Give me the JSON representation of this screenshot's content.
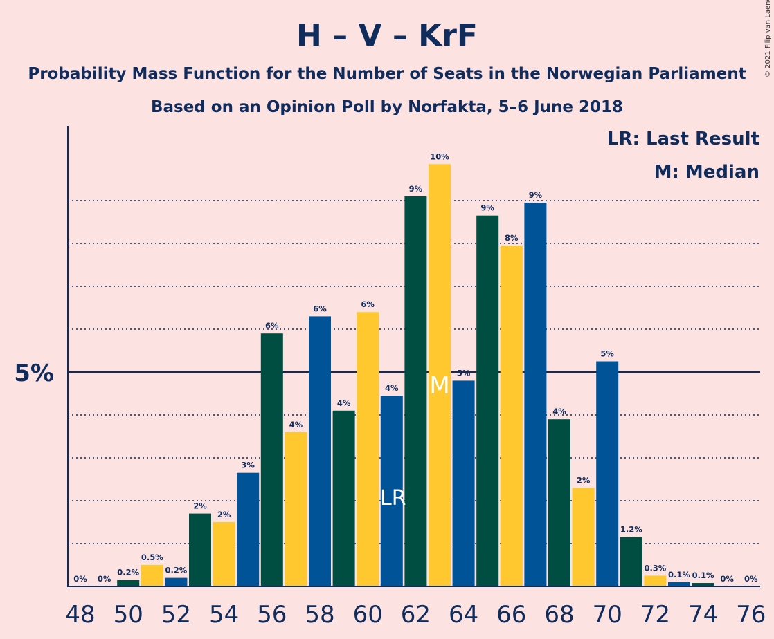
{
  "copyright": "© 2021 Filip van Laenen",
  "chart_data": {
    "type": "bar",
    "title": "H – V – KrF",
    "subtitle1": "Probability Mass Function for the Number of Seats in the Norwegian Parliament",
    "subtitle2": "Based on an Opinion Poll by Norfakta, 5–6 June 2018",
    "legend": [
      "LR: Last Result",
      "M: Median"
    ],
    "legend_position": "top-right",
    "y_tick_label": "5%",
    "ylim": [
      0,
      10.8
    ],
    "x": [
      48,
      49,
      50,
      51,
      52,
      53,
      54,
      55,
      56,
      57,
      58,
      59,
      60,
      61,
      62,
      63,
      64,
      65,
      66,
      67,
      68,
      69,
      70,
      71,
      72,
      73,
      74,
      75,
      76
    ],
    "x_tick_labels": [
      "48",
      "50",
      "52",
      "54",
      "56",
      "58",
      "60",
      "62",
      "64",
      "66",
      "68",
      "70",
      "72",
      "74",
      "76"
    ],
    "values": [
      0,
      0,
      0.15,
      0.5,
      0.2,
      1.7,
      1.5,
      2.65,
      5.9,
      3.6,
      6.3,
      4.1,
      6.4,
      4.45,
      9.1,
      9.85,
      4.8,
      8.65,
      7.95,
      8.95,
      3.9,
      2.3,
      5.25,
      1.15,
      0.25,
      0.1,
      0.08,
      0,
      0
    ],
    "labels": [
      "0%",
      "0%",
      "0.2%",
      "0.5%",
      "0.2%",
      "2%",
      "2%",
      "3%",
      "6%",
      "4%",
      "6%",
      "4%",
      "6%",
      "4%",
      "9%",
      "10%",
      "5%",
      "9%",
      "8%",
      "9%",
      "4%",
      "2%",
      "5%",
      "1.2%",
      "0.3%",
      "0.1%",
      "0.1%",
      "0%",
      "0%"
    ],
    "bar_colors": [
      "#FFC82F",
      "#005396",
      "#004D42"
    ],
    "last_result": {
      "seat": 61,
      "label": "LR"
    },
    "median": {
      "seat": 63,
      "label": "M"
    }
  }
}
